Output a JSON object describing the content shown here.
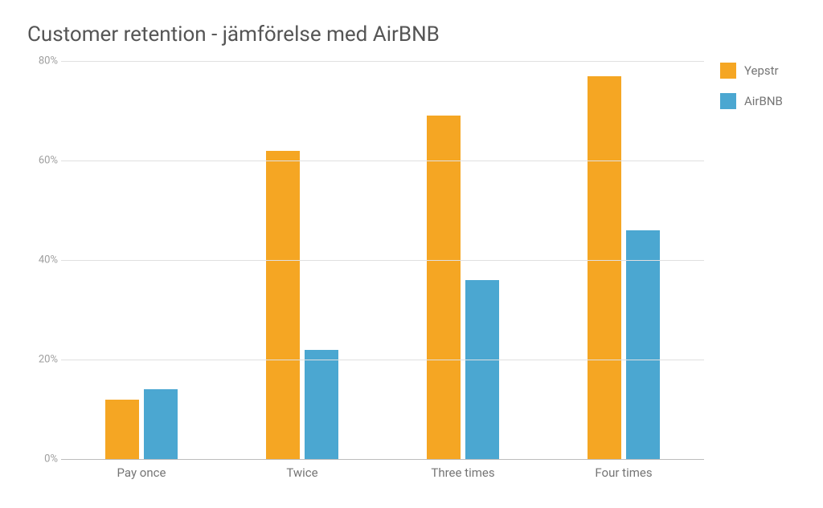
{
  "chart": {
    "type": "bar",
    "title": "Customer retention - jämförelse med AirBNB",
    "title_fontsize": 26,
    "title_color": "#555555",
    "background_color": "#ffffff",
    "grid_color": "#e0e0e0",
    "axis_color": "#bdbdbd",
    "label_color": "#757575",
    "y_label_color": "#9e9e9e",
    "label_fontsize": 15,
    "y_label_fontsize": 13,
    "ylim": [
      0,
      80
    ],
    "ytick_step": 20,
    "y_ticks": [
      0,
      20,
      40,
      60,
      80
    ],
    "y_tick_labels": [
      "0%",
      "20%",
      "40%",
      "60%",
      "80%"
    ],
    "categories": [
      "Pay once",
      "Twice",
      "Three times",
      "Four times"
    ],
    "series": [
      {
        "name": "Yepstr",
        "color": "#f5a623",
        "values": [
          12,
          62,
          69,
          77
        ]
      },
      {
        "name": "AirBNB",
        "color": "#4ba7d1",
        "values": [
          14,
          22,
          36,
          46
        ]
      }
    ],
    "bar_width_pct": 21,
    "bar_gap_pct": 3,
    "legend_position": "right"
  }
}
